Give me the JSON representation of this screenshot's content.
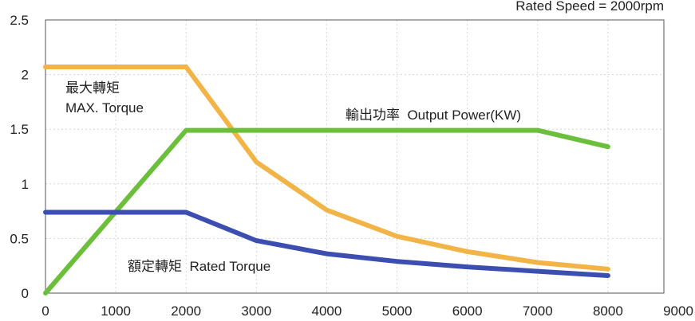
{
  "chart_data": {
    "type": "line",
    "title": "",
    "subtitle": "Rated Speed = 2000rpm",
    "xlabel": "",
    "ylabel": "",
    "xlim": [
      0,
      9000
    ],
    "ylim": [
      0,
      2.5
    ],
    "x_ticks": [
      0,
      1000,
      2000,
      3000,
      4000,
      5000,
      6000,
      7000,
      8000,
      9000
    ],
    "y_ticks": [
      0,
      0.5,
      1,
      1.5,
      2,
      2.5
    ],
    "y_tick_labels": [
      "0",
      "0.5",
      "1",
      "1.5",
      "2",
      "2.5"
    ],
    "grid": true,
    "series": [
      {
        "key": "max_torque",
        "color": "#f2b447",
        "x": [
          0,
          2000,
          3000,
          4000,
          5000,
          6000,
          7000,
          8000
        ],
        "y": [
          2.07,
          2.07,
          1.2,
          0.76,
          0.52,
          0.38,
          0.28,
          0.22
        ]
      },
      {
        "key": "output_power",
        "color": "#6bbf3a",
        "x": [
          0,
          2000,
          7000,
          8000
        ],
        "y": [
          0,
          1.49,
          1.49,
          1.34
        ]
      },
      {
        "key": "rated_torque",
        "color": "#3c4fb0",
        "x": [
          0,
          2000,
          3000,
          4000,
          5000,
          6000,
          7000,
          8000
        ],
        "y": [
          0.74,
          0.74,
          0.48,
          0.36,
          0.29,
          0.24,
          0.2,
          0.16
        ]
      }
    ],
    "annotations": [
      {
        "key": "max_torque_cn",
        "text": "最大轉矩"
      },
      {
        "key": "max_torque_en",
        "text": "MAX. Torque"
      },
      {
        "key": "output_power",
        "text": "輸出功率  Output Power(KW)"
      },
      {
        "key": "rated_torque",
        "text": "額定轉矩  Rated Torque"
      }
    ]
  }
}
